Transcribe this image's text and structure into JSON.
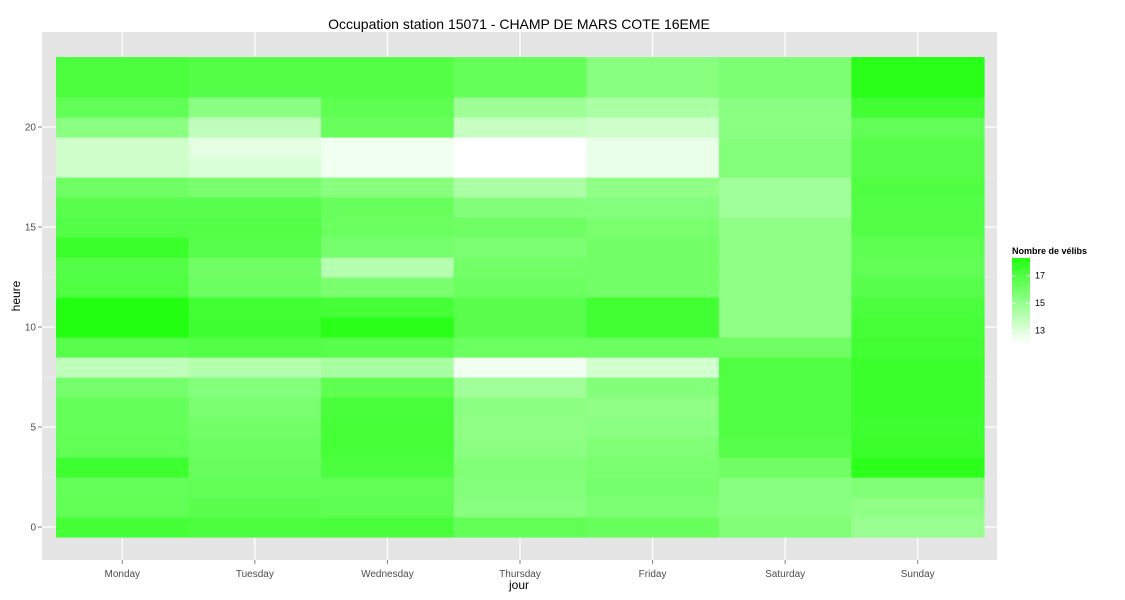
{
  "chart_data": {
    "type": "heatmap",
    "title": "Occupation station 15071 - CHAMP DE MARS COTE 16EME",
    "xlabel": "jour",
    "ylabel": "heure",
    "x": [
      "Monday",
      "Tuesday",
      "Wednesday",
      "Thursday",
      "Friday",
      "Saturday",
      "Sunday"
    ],
    "y": [
      0,
      1,
      2,
      3,
      4,
      5,
      6,
      7,
      8,
      9,
      10,
      11,
      12,
      13,
      14,
      15,
      16,
      17,
      18,
      19,
      20,
      21,
      22,
      23
    ],
    "yticks": [
      0,
      5,
      10,
      15,
      20
    ],
    "ylim": [
      -0.5,
      23.5
    ],
    "grid": true,
    "legend": {
      "title": "Nombre de vélibs",
      "position": "right",
      "ticks": [
        13,
        15,
        17
      ],
      "range": [
        12,
        18.3
      ],
      "low_color": "#ffffff",
      "high_color": "#22ff11"
    },
    "values": [
      [
        17.3,
        17.1,
        17.2,
        16.5,
        16.3,
        15.6,
        14.9
      ],
      [
        16.5,
        16.7,
        16.6,
        15.4,
        15.7,
        15.4,
        15.2
      ],
      [
        16.4,
        16.5,
        16.5,
        15.5,
        15.9,
        15.4,
        15.6
      ],
      [
        17.5,
        16.3,
        17.1,
        15.6,
        15.8,
        16.1,
        18.0
      ],
      [
        16.5,
        16.2,
        17.3,
        15.3,
        15.6,
        16.8,
        17.6
      ],
      [
        16.4,
        16.0,
        17.3,
        15.2,
        15.3,
        17.0,
        17.5
      ],
      [
        16.4,
        15.8,
        17.2,
        15.3,
        15.2,
        17.0,
        17.6
      ],
      [
        15.9,
        15.5,
        16.6,
        14.7,
        15.5,
        17.0,
        17.6
      ],
      [
        13.8,
        14.2,
        14.5,
        12.4,
        13.3,
        17.0,
        17.6
      ],
      [
        16.8,
        16.9,
        16.8,
        16.2,
        16.2,
        16.1,
        17.4
      ],
      [
        18.3,
        17.5,
        18.1,
        16.7,
        17.4,
        15.2,
        17.3
      ],
      [
        18.3,
        17.4,
        17.3,
        16.7,
        17.4,
        15.2,
        17.1
      ],
      [
        17.0,
        16.2,
        15.8,
        16.2,
        16.0,
        15.2,
        16.8
      ],
      [
        16.9,
        16.1,
        14.1,
        16.0,
        16.0,
        15.2,
        16.5
      ],
      [
        17.6,
        16.8,
        15.9,
        15.7,
        16.0,
        15.2,
        16.6
      ],
      [
        16.9,
        16.9,
        16.2,
        16.1,
        15.8,
        15.2,
        16.9
      ],
      [
        16.7,
        16.7,
        16.3,
        15.5,
        15.5,
        14.7,
        16.9
      ],
      [
        16.1,
        15.8,
        15.4,
        14.4,
        15.2,
        14.7,
        17.0
      ],
      [
        13.4,
        13.1,
        12.4,
        12.0,
        12.6,
        15.5,
        16.8
      ],
      [
        13.4,
        12.8,
        12.4,
        12.0,
        12.6,
        15.5,
        16.8
      ],
      [
        15.3,
        13.8,
        16.3,
        13.6,
        13.4,
        15.3,
        16.5
      ],
      [
        16.5,
        15.3,
        16.6,
        14.8,
        14.4,
        15.3,
        17.4
      ],
      [
        17.1,
        16.9,
        16.9,
        16.4,
        15.4,
        15.7,
        18.1
      ],
      [
        17.1,
        16.9,
        16.9,
        16.4,
        15.4,
        15.7,
        18.1
      ]
    ]
  }
}
